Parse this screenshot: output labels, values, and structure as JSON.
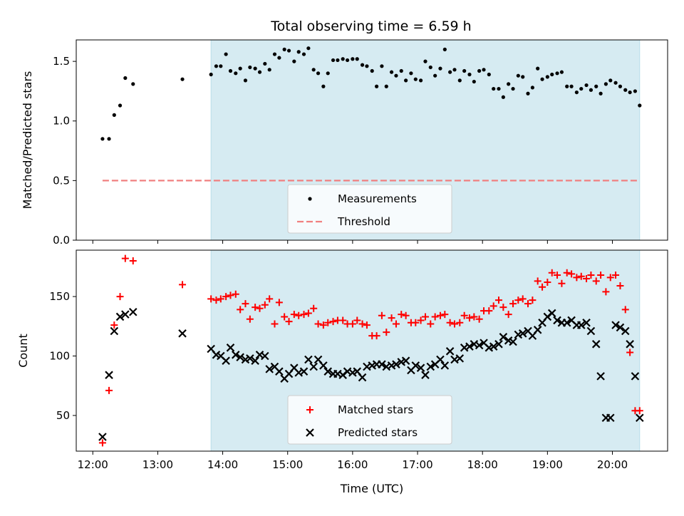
{
  "figure": {
    "title": "Total observing time = 6.59 h"
  },
  "chart_data": [
    {
      "type": "scatter",
      "ylabel": "Matched/Predicted stars",
      "ylim": [
        0.0,
        1.68
      ],
      "yticks": [
        "0.0",
        "0.5",
        "1.0",
        "1.5"
      ],
      "ytick_values": [
        0.0,
        0.5,
        1.0,
        1.5
      ],
      "xlim": [
        11.745,
        20.85
      ],
      "grid": false,
      "shaded_span": {
        "x0": 13.82,
        "x1": 20.42,
        "color": "#add8e6"
      },
      "threshold": {
        "name": "Threshold",
        "y": 0.5,
        "x0": 12.15,
        "x1": 20.42,
        "color": "#f08080"
      },
      "legend": {
        "placement": "lower center",
        "entries": [
          "Measurements",
          "Threshold"
        ]
      },
      "series": [
        {
          "name": "Measurements",
          "color": "#000000",
          "marker": "dot",
          "x": [
            12.15,
            12.25,
            12.33,
            12.42,
            12.5,
            12.62,
            13.38,
            13.82,
            13.9,
            13.97,
            14.05,
            14.12,
            14.2,
            14.27,
            14.35,
            14.42,
            14.5,
            14.57,
            14.65,
            14.72,
            14.8,
            14.87,
            14.95,
            15.02,
            15.1,
            15.17,
            15.25,
            15.32,
            15.4,
            15.47,
            15.55,
            15.62,
            15.7,
            15.77,
            15.85,
            15.92,
            16.0,
            16.07,
            16.15,
            16.22,
            16.3,
            16.37,
            16.45,
            16.52,
            16.6,
            16.67,
            16.75,
            16.82,
            16.9,
            16.97,
            17.05,
            17.12,
            17.2,
            17.27,
            17.35,
            17.42,
            17.5,
            17.57,
            17.65,
            17.72,
            17.8,
            17.87,
            17.95,
            18.02,
            18.1,
            18.17,
            18.25,
            18.32,
            18.4,
            18.47,
            18.55,
            18.62,
            18.7,
            18.77,
            18.85,
            18.92,
            19.0,
            19.07,
            19.15,
            19.22,
            19.3,
            19.37,
            19.45,
            19.52,
            19.6,
            19.67,
            19.75,
            19.82,
            19.9,
            19.97,
            20.05,
            20.12,
            20.2,
            20.27,
            20.35,
            20.42
          ],
          "y": [
            0.85,
            0.85,
            1.05,
            1.13,
            1.36,
            1.31,
            1.35,
            1.39,
            1.46,
            1.46,
            1.56,
            1.42,
            1.4,
            1.44,
            1.34,
            1.45,
            1.44,
            1.41,
            1.48,
            1.43,
            1.56,
            1.53,
            1.6,
            1.59,
            1.5,
            1.58,
            1.56,
            1.61,
            1.43,
            1.4,
            1.29,
            1.4,
            1.51,
            1.51,
            1.52,
            1.51,
            1.52,
            1.52,
            1.47,
            1.46,
            1.42,
            1.29,
            1.46,
            1.29,
            1.41,
            1.38,
            1.42,
            1.34,
            1.4,
            1.35,
            1.34,
            1.5,
            1.45,
            1.38,
            1.44,
            1.6,
            1.41,
            1.43,
            1.34,
            1.42,
            1.39,
            1.33,
            1.42,
            1.43,
            1.39,
            1.27,
            1.27,
            1.2,
            1.31,
            1.27,
            1.38,
            1.37,
            1.23,
            1.28,
            1.44,
            1.35,
            1.37,
            1.39,
            1.4,
            1.41,
            1.29,
            1.29,
            1.24,
            1.27,
            1.3,
            1.26,
            1.29,
            1.23,
            1.31,
            1.34,
            1.32,
            1.29,
            1.26,
            1.24,
            1.25,
            1.13
          ]
        }
      ]
    },
    {
      "type": "scatter",
      "xlabel": "Time (UTC)",
      "ylabel": "Count",
      "ylim": [
        20,
        189
      ],
      "yticks": [
        "50",
        "100",
        "150"
      ],
      "ytick_values": [
        50,
        100,
        150
      ],
      "xlim": [
        11.745,
        20.85
      ],
      "xticks": [
        "12:00",
        "13:00",
        "14:00",
        "15:00",
        "16:00",
        "17:00",
        "18:00",
        "19:00",
        "20:00"
      ],
      "xtick_values": [
        12,
        13,
        14,
        15,
        16,
        17,
        18,
        19,
        20
      ],
      "grid": false,
      "shaded_span": {
        "x0": 13.82,
        "x1": 20.42,
        "color": "#add8e6"
      },
      "legend": {
        "placement": "lower center",
        "entries": [
          "Matched stars",
          "Predicted stars"
        ]
      },
      "series": [
        {
          "name": "Matched stars",
          "color": "#ff0000",
          "marker": "plus",
          "x": [
            12.15,
            12.25,
            12.33,
            12.42,
            12.5,
            12.62,
            13.38,
            13.82,
            13.9,
            13.97,
            14.05,
            14.12,
            14.2,
            14.27,
            14.35,
            14.42,
            14.5,
            14.57,
            14.65,
            14.72,
            14.8,
            14.87,
            14.95,
            15.02,
            15.1,
            15.17,
            15.25,
            15.32,
            15.4,
            15.47,
            15.55,
            15.62,
            15.7,
            15.77,
            15.85,
            15.92,
            16.0,
            16.07,
            16.15,
            16.22,
            16.3,
            16.37,
            16.45,
            16.52,
            16.6,
            16.67,
            16.75,
            16.82,
            16.9,
            16.97,
            17.05,
            17.12,
            17.2,
            17.27,
            17.35,
            17.42,
            17.5,
            17.57,
            17.65,
            17.72,
            17.8,
            17.87,
            17.95,
            18.02,
            18.1,
            18.17,
            18.25,
            18.32,
            18.4,
            18.47,
            18.55,
            18.62,
            18.7,
            18.77,
            18.85,
            18.92,
            19.0,
            19.07,
            19.15,
            19.22,
            19.3,
            19.37,
            19.45,
            19.52,
            19.6,
            19.67,
            19.75,
            19.82,
            19.9,
            19.97,
            20.05,
            20.12,
            20.2,
            20.27,
            20.35,
            20.42
          ],
          "y": [
            27,
            71,
            126,
            150,
            182,
            180,
            160,
            148,
            147,
            148,
            150,
            151,
            152,
            139,
            144,
            131,
            141,
            140,
            143,
            148,
            127,
            145,
            133,
            129,
            135,
            134,
            135,
            136,
            140,
            127,
            126,
            128,
            129,
            130,
            130,
            127,
            127,
            130,
            127,
            126,
            117,
            117,
            134,
            120,
            132,
            127,
            135,
            134,
            128,
            128,
            130,
            133,
            127,
            133,
            134,
            135,
            128,
            127,
            128,
            134,
            132,
            133,
            131,
            138,
            138,
            142,
            147,
            141,
            135,
            144,
            147,
            148,
            144,
            147,
            163,
            158,
            162,
            170,
            168,
            161,
            170,
            169,
            166,
            167,
            165,
            168,
            163,
            168,
            154,
            166,
            168,
            159,
            139,
            103,
            54,
            54
          ]
        },
        {
          "name": "Predicted stars",
          "color": "#000000",
          "marker": "x",
          "x": [
            12.15,
            12.25,
            12.33,
            12.42,
            12.5,
            12.62,
            13.38,
            13.82,
            13.9,
            13.97,
            14.05,
            14.12,
            14.2,
            14.27,
            14.35,
            14.42,
            14.5,
            14.57,
            14.65,
            14.72,
            14.8,
            14.87,
            14.95,
            15.02,
            15.1,
            15.17,
            15.25,
            15.32,
            15.4,
            15.47,
            15.55,
            15.62,
            15.7,
            15.77,
            15.85,
            15.92,
            16.0,
            16.07,
            16.15,
            16.22,
            16.3,
            16.37,
            16.45,
            16.52,
            16.6,
            16.67,
            16.75,
            16.82,
            16.9,
            16.97,
            17.05,
            17.12,
            17.2,
            17.27,
            17.35,
            17.42,
            17.5,
            17.57,
            17.65,
            17.72,
            17.8,
            17.87,
            17.95,
            18.02,
            18.1,
            18.17,
            18.25,
            18.32,
            18.4,
            18.47,
            18.55,
            18.62,
            18.7,
            18.77,
            18.85,
            18.92,
            19.0,
            19.07,
            19.15,
            19.22,
            19.3,
            19.37,
            19.45,
            19.52,
            19.6,
            19.67,
            19.75,
            19.82,
            19.9,
            19.97,
            20.05,
            20.12,
            20.2,
            20.27,
            20.35,
            20.42
          ],
          "y": [
            32,
            84,
            121,
            133,
            135,
            137,
            119,
            106,
            101,
            100,
            96,
            107,
            101,
            99,
            97,
            98,
            96,
            101,
            100,
            89,
            91,
            87,
            81,
            85,
            90,
            86,
            87,
            97,
            91,
            97,
            92,
            87,
            85,
            85,
            84,
            87,
            86,
            87,
            82,
            91,
            92,
            93,
            93,
            91,
            92,
            93,
            95,
            96,
            88,
            92,
            90,
            84,
            91,
            93,
            97,
            92,
            104,
            97,
            98,
            107,
            108,
            110,
            109,
            111,
            107,
            108,
            110,
            116,
            113,
            112,
            118,
            119,
            121,
            117,
            122,
            128,
            133,
            136,
            130,
            128,
            128,
            130,
            126,
            126,
            128,
            121,
            110,
            83,
            48,
            48,
            126,
            124,
            121,
            110,
            83,
            48
          ]
        }
      ]
    }
  ]
}
